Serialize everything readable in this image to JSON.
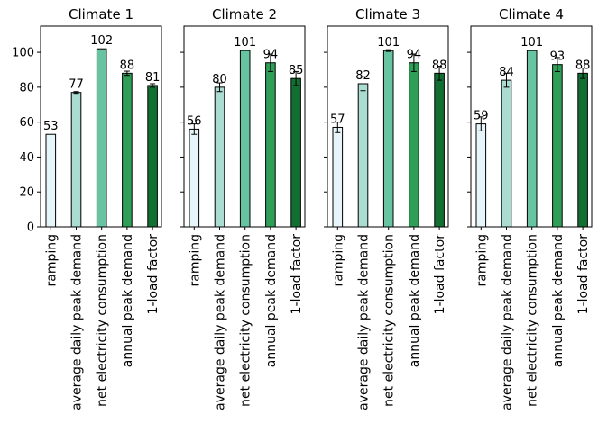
{
  "chart_data": {
    "type": "bar",
    "categories": [
      "ramping",
      "average daily peak demand",
      "net electricity consumption",
      "annual peak demand",
      "1-load factor"
    ],
    "ylim": [
      0,
      115
    ],
    "yticks": [
      0,
      20,
      40,
      60,
      80,
      100
    ],
    "shared_y": true,
    "error_bars": true,
    "colors": [
      "#e5f5f9",
      "#abdcd1",
      "#68c3a2",
      "#2f9e57",
      "#126f32"
    ],
    "panels": [
      {
        "title": "Climate 1",
        "values": [
          53,
          77,
          102,
          88,
          81
        ],
        "labels": [
          "53",
          "77",
          "102",
          "88",
          "81"
        ],
        "errors": [
          0,
          0.5,
          0,
          1.2,
          1
        ]
      },
      {
        "title": "Climate 2",
        "values": [
          56,
          80,
          101,
          94,
          85
        ],
        "labels": [
          "56",
          "80",
          "101",
          "94",
          "85"
        ],
        "errors": [
          3,
          2.5,
          0,
          5,
          4
        ]
      },
      {
        "title": "Climate 3",
        "values": [
          57,
          82,
          101,
          94,
          88
        ],
        "labels": [
          "57",
          "82",
          "101",
          "94",
          "88"
        ],
        "errors": [
          3,
          4,
          0.5,
          5,
          4
        ]
      },
      {
        "title": "Climate 4",
        "values": [
          59,
          84,
          101,
          93,
          88
        ],
        "labels": [
          "59",
          "84",
          "101",
          "93",
          "88"
        ],
        "errors": [
          4,
          4,
          0,
          4,
          3
        ]
      }
    ]
  }
}
